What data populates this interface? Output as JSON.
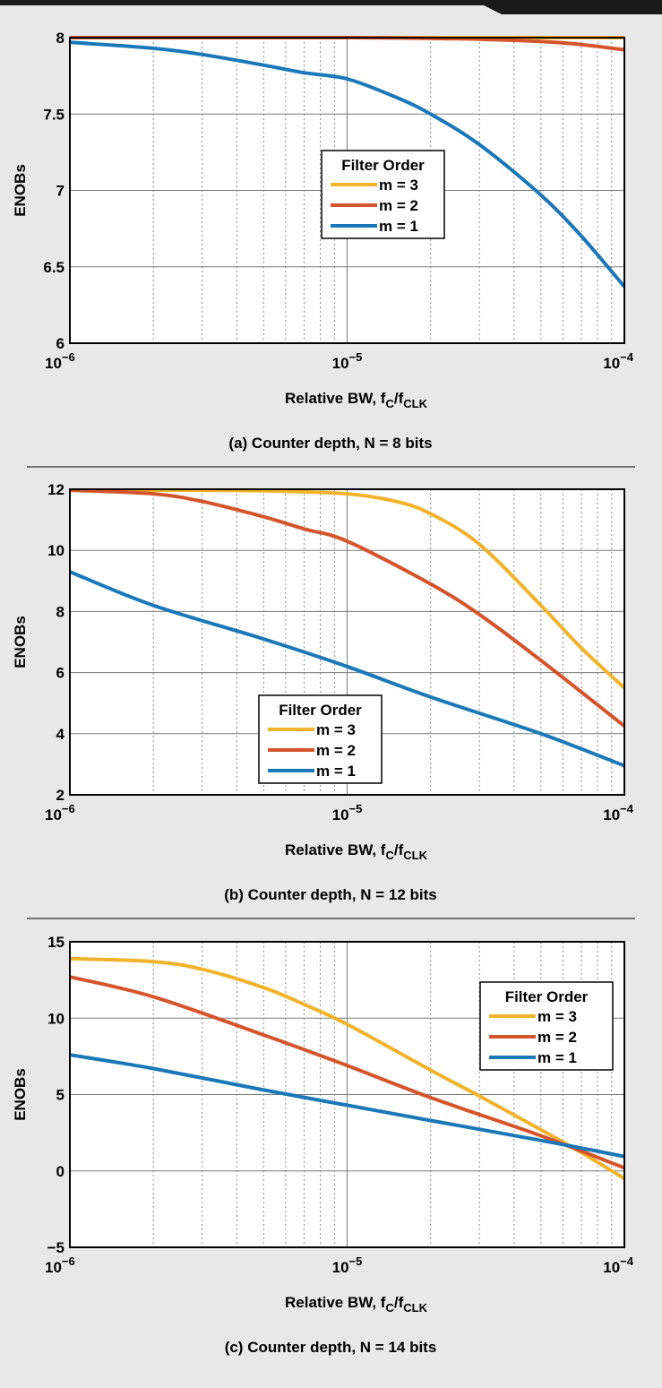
{
  "chart_data": [
    {
      "type": "line",
      "caption": "(a) Counter depth, N = 8 bits",
      "xscale": "log",
      "xlim": [
        1e-06,
        0.0001
      ],
      "ylim": [
        6,
        8
      ],
      "x_tick_labels": [
        {
          "base": "10",
          "exp": "−6"
        },
        {
          "base": "10",
          "exp": "−5"
        },
        {
          "base": "10",
          "exp": "−4"
        }
      ],
      "y_ticks": [
        6,
        6.5,
        7,
        7.5,
        8
      ],
      "y_tick_labels": [
        "6",
        "6.5",
        "7",
        "7.5",
        "8"
      ],
      "ylabel": "ENOBs",
      "xlabel": {
        "main": "Relative BW, f",
        "sub1": "C",
        "slash": "/f",
        "sub2": "CLK"
      },
      "grid": true,
      "legend": {
        "title": "Filter Order",
        "placement": "center-right"
      },
      "series": [
        {
          "name": "m = 3",
          "color": "#f2b32c",
          "x": [
            1e-06,
            3e-06,
            1e-05,
            3e-05,
            0.0001
          ],
          "y": [
            8.0,
            8.0,
            8.0,
            8.0,
            8.0
          ]
        },
        {
          "name": "m = 2",
          "color": "#d4552b",
          "x": [
            1e-06,
            3e-06,
            1e-05,
            2e-05,
            3e-05,
            5e-05,
            7e-05,
            0.0001
          ],
          "y": [
            8.0,
            8.0,
            8.0,
            7.995,
            7.99,
            7.975,
            7.955,
            7.92
          ]
        },
        {
          "name": "m = 1",
          "color": "#1a77b8",
          "x": [
            1e-06,
            2e-06,
            3e-06,
            5e-06,
            7e-06,
            1e-05,
            1.5e-05,
            2e-05,
            3e-05,
            5e-05,
            7e-05,
            0.0001
          ],
          "y": [
            7.97,
            7.93,
            7.89,
            7.82,
            7.77,
            7.73,
            7.61,
            7.5,
            7.3,
            6.97,
            6.7,
            6.37
          ]
        }
      ]
    },
    {
      "type": "line",
      "caption": "(b) Counter depth, N = 12 bits",
      "xscale": "log",
      "xlim": [
        1e-06,
        0.0001
      ],
      "ylim": [
        2,
        12
      ],
      "x_tick_labels": [
        {
          "base": "10",
          "exp": "−6"
        },
        {
          "base": "10",
          "exp": "−5"
        },
        {
          "base": "10",
          "exp": "−4"
        }
      ],
      "y_ticks": [
        2,
        4,
        6,
        8,
        10,
        12
      ],
      "y_tick_labels": [
        "2",
        "4",
        "6",
        "8",
        "10",
        "12"
      ],
      "ylabel": "ENOBs",
      "xlabel": {
        "main": "Relative BW, f",
        "sub1": "C",
        "slash": "/f",
        "sub2": "CLK"
      },
      "grid": true,
      "legend": {
        "title": "Filter Order",
        "placement": "lower-center"
      },
      "series": [
        {
          "name": "m = 3",
          "color": "#f2b32c",
          "x": [
            1e-06,
            2e-06,
            5e-06,
            1e-05,
            1.5e-05,
            2e-05,
            3e-05,
            5e-05,
            7e-05,
            0.0001
          ],
          "y": [
            11.97,
            11.97,
            11.95,
            11.85,
            11.6,
            11.2,
            10.2,
            8.2,
            6.8,
            5.5
          ]
        },
        {
          "name": "m = 2",
          "color": "#d4552b",
          "x": [
            1e-06,
            2e-06,
            3e-06,
            5e-06,
            7e-06,
            1e-05,
            2e-05,
            3e-05,
            5e-05,
            0.0001
          ],
          "y": [
            11.97,
            11.85,
            11.6,
            11.1,
            10.7,
            10.3,
            8.9,
            7.9,
            6.4,
            4.25
          ]
        },
        {
          "name": "m = 1",
          "color": "#1a77b8",
          "x": [
            1e-06,
            2e-06,
            5e-06,
            1e-05,
            2e-05,
            5e-05,
            0.0001
          ],
          "y": [
            9.3,
            8.2,
            7.1,
            6.2,
            5.2,
            4.0,
            2.95
          ]
        }
      ]
    },
    {
      "type": "line",
      "caption": "(c) Counter depth, N = 14 bits",
      "xscale": "log",
      "xlim": [
        1e-06,
        0.0001
      ],
      "ylim": [
        -5,
        15
      ],
      "x_tick_labels": [
        {
          "base": "10",
          "exp": "−6"
        },
        {
          "base": "10",
          "exp": "−5"
        },
        {
          "base": "10",
          "exp": "−4"
        }
      ],
      "y_ticks": [
        -5,
        0,
        5,
        10,
        15
      ],
      "y_tick_labels": [
        "−5",
        "0",
        "5",
        "10",
        "15"
      ],
      "ylabel": "ENOBs",
      "xlabel": {
        "main": "Relative BW, f",
        "sub1": "C",
        "slash": "/f",
        "sub2": "CLK"
      },
      "grid": true,
      "legend": {
        "title": "Filter Order",
        "placement": "top-right"
      },
      "series": [
        {
          "name": "m = 3",
          "color": "#f2b32c",
          "x": [
            1e-06,
            2e-06,
            3e-06,
            5e-06,
            7e-06,
            1e-05,
            2e-05,
            3e-05,
            5e-05,
            7e-05,
            0.0001
          ],
          "y": [
            13.9,
            13.7,
            13.2,
            12.0,
            10.9,
            9.6,
            6.6,
            4.9,
            2.7,
            1.2,
            -0.5
          ]
        },
        {
          "name": "m = 2",
          "color": "#d4552b",
          "x": [
            1e-06,
            2e-06,
            5e-06,
            1e-05,
            2e-05,
            5e-05,
            0.0001
          ],
          "y": [
            12.7,
            11.4,
            8.9,
            6.9,
            4.8,
            2.3,
            0.2
          ]
        },
        {
          "name": "m = 1",
          "color": "#1a77b8",
          "x": [
            1e-06,
            2e-06,
            5e-06,
            1e-05,
            2e-05,
            5e-05,
            0.0001
          ],
          "y": [
            7.6,
            6.7,
            5.3,
            4.3,
            3.3,
            2.0,
            0.95
          ]
        }
      ]
    }
  ]
}
